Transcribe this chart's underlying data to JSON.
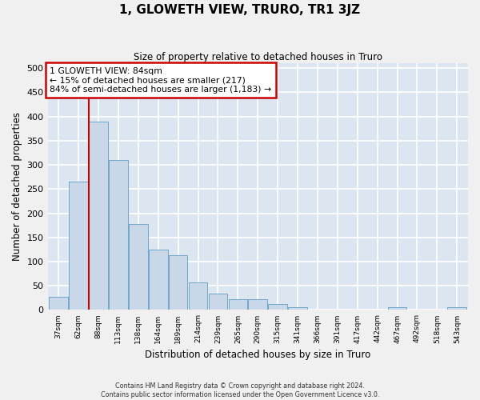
{
  "title": "1, GLOWETH VIEW, TRURO, TR1 3JZ",
  "subtitle": "Size of property relative to detached houses in Truro",
  "xlabel": "Distribution of detached houses by size in Truro",
  "ylabel": "Number of detached properties",
  "footer_line1": "Contains HM Land Registry data © Crown copyright and database right 2024.",
  "footer_line2": "Contains public sector information licensed under the Open Government Licence v3.0.",
  "categories": [
    "37sqm",
    "62sqm",
    "88sqm",
    "113sqm",
    "138sqm",
    "164sqm",
    "189sqm",
    "214sqm",
    "239sqm",
    "265sqm",
    "290sqm",
    "315sqm",
    "341sqm",
    "366sqm",
    "391sqm",
    "417sqm",
    "442sqm",
    "467sqm",
    "492sqm",
    "518sqm",
    "543sqm"
  ],
  "values": [
    27,
    265,
    390,
    310,
    178,
    125,
    113,
    57,
    33,
    22,
    22,
    12,
    6,
    0,
    0,
    0,
    0,
    5,
    0,
    0,
    5
  ],
  "bar_color": "#c8d8e8",
  "bar_edge_color": "#6fa8c8",
  "background_color": "#dce6f0",
  "grid_color": "#ffffff",
  "property_label": "1 GLOWETH VIEW: 84sqm",
  "annotation_line1": "← 15% of detached houses are smaller (217)",
  "annotation_line2": "84% of semi-detached houses are larger (1,183) →",
  "vline_color": "#cc0000",
  "vline_position": 1.5,
  "annotation_box_color": "#ffffff",
  "annotation_box_edge_color": "#cc0000",
  "ylim": [
    0,
    510
  ],
  "yticks": [
    0,
    50,
    100,
    150,
    200,
    250,
    300,
    350,
    400,
    450,
    500
  ]
}
